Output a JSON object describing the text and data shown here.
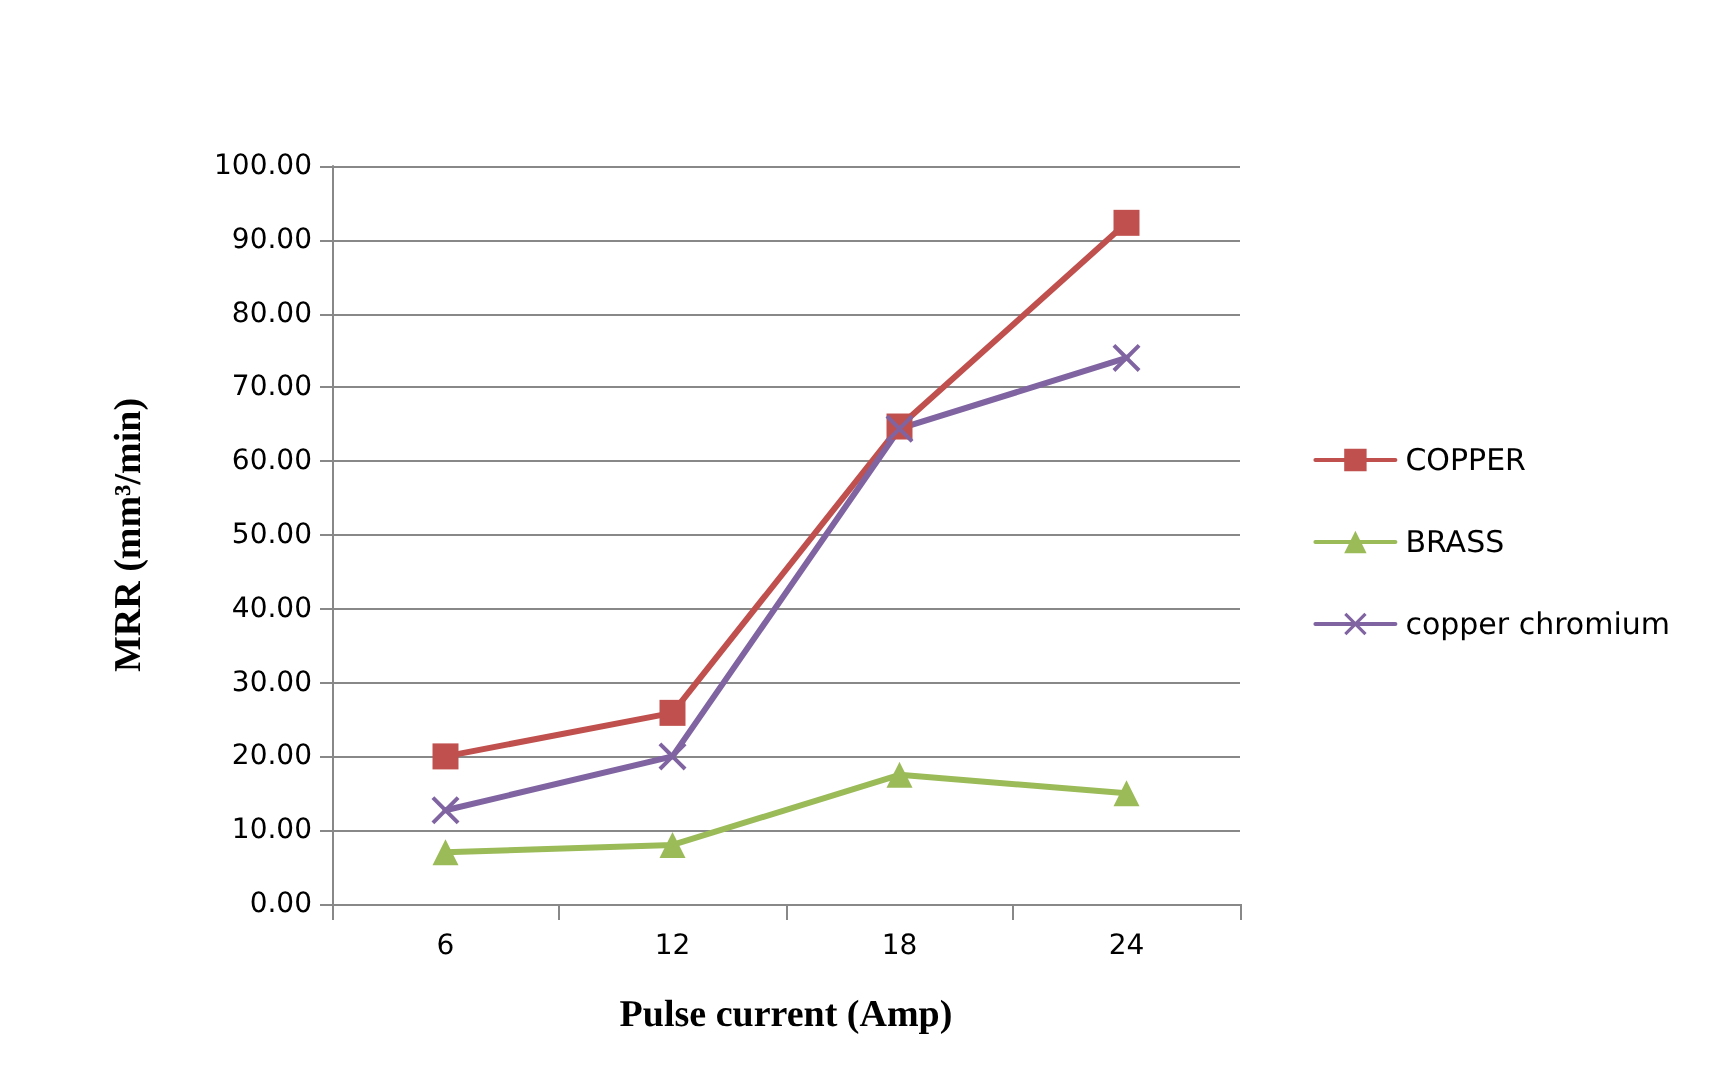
{
  "chart_data": {
    "type": "line",
    "xlabel": "Pulse current (Amp)",
    "ylabel": "MRR (mm³/min)",
    "categories": [
      "6",
      "12",
      "18",
      "24"
    ],
    "series": [
      {
        "name": "COPPER",
        "color": "#c0504d",
        "marker": "square",
        "values": [
          20.0,
          25.9,
          64.7,
          92.3
        ]
      },
      {
        "name": "BRASS",
        "color": "#9bbb59",
        "marker": "triangle",
        "values": [
          7.0,
          8.0,
          17.5,
          15.0
        ]
      },
      {
        "name": "copper chromium",
        "color": "#8064a2",
        "marker": "cross",
        "values": [
          12.7,
          20.0,
          64.4,
          74.0
        ]
      }
    ],
    "ylim": [
      0,
      100
    ],
    "yticks": [
      {
        "value": 0,
        "label": "0.00"
      },
      {
        "value": 10,
        "label": "10.00"
      },
      {
        "value": 20,
        "label": "20.00"
      },
      {
        "value": 30,
        "label": "30.00"
      },
      {
        "value": 40,
        "label": "40.00"
      },
      {
        "value": 50,
        "label": "50.00"
      },
      {
        "value": 60,
        "label": "60.00"
      },
      {
        "value": 70,
        "label": "70.00"
      },
      {
        "value": 80,
        "label": "80.00"
      },
      {
        "value": 90,
        "label": "90.00"
      },
      {
        "value": 100,
        "label": "100.00"
      }
    ],
    "grid": "y",
    "legend": "right"
  }
}
